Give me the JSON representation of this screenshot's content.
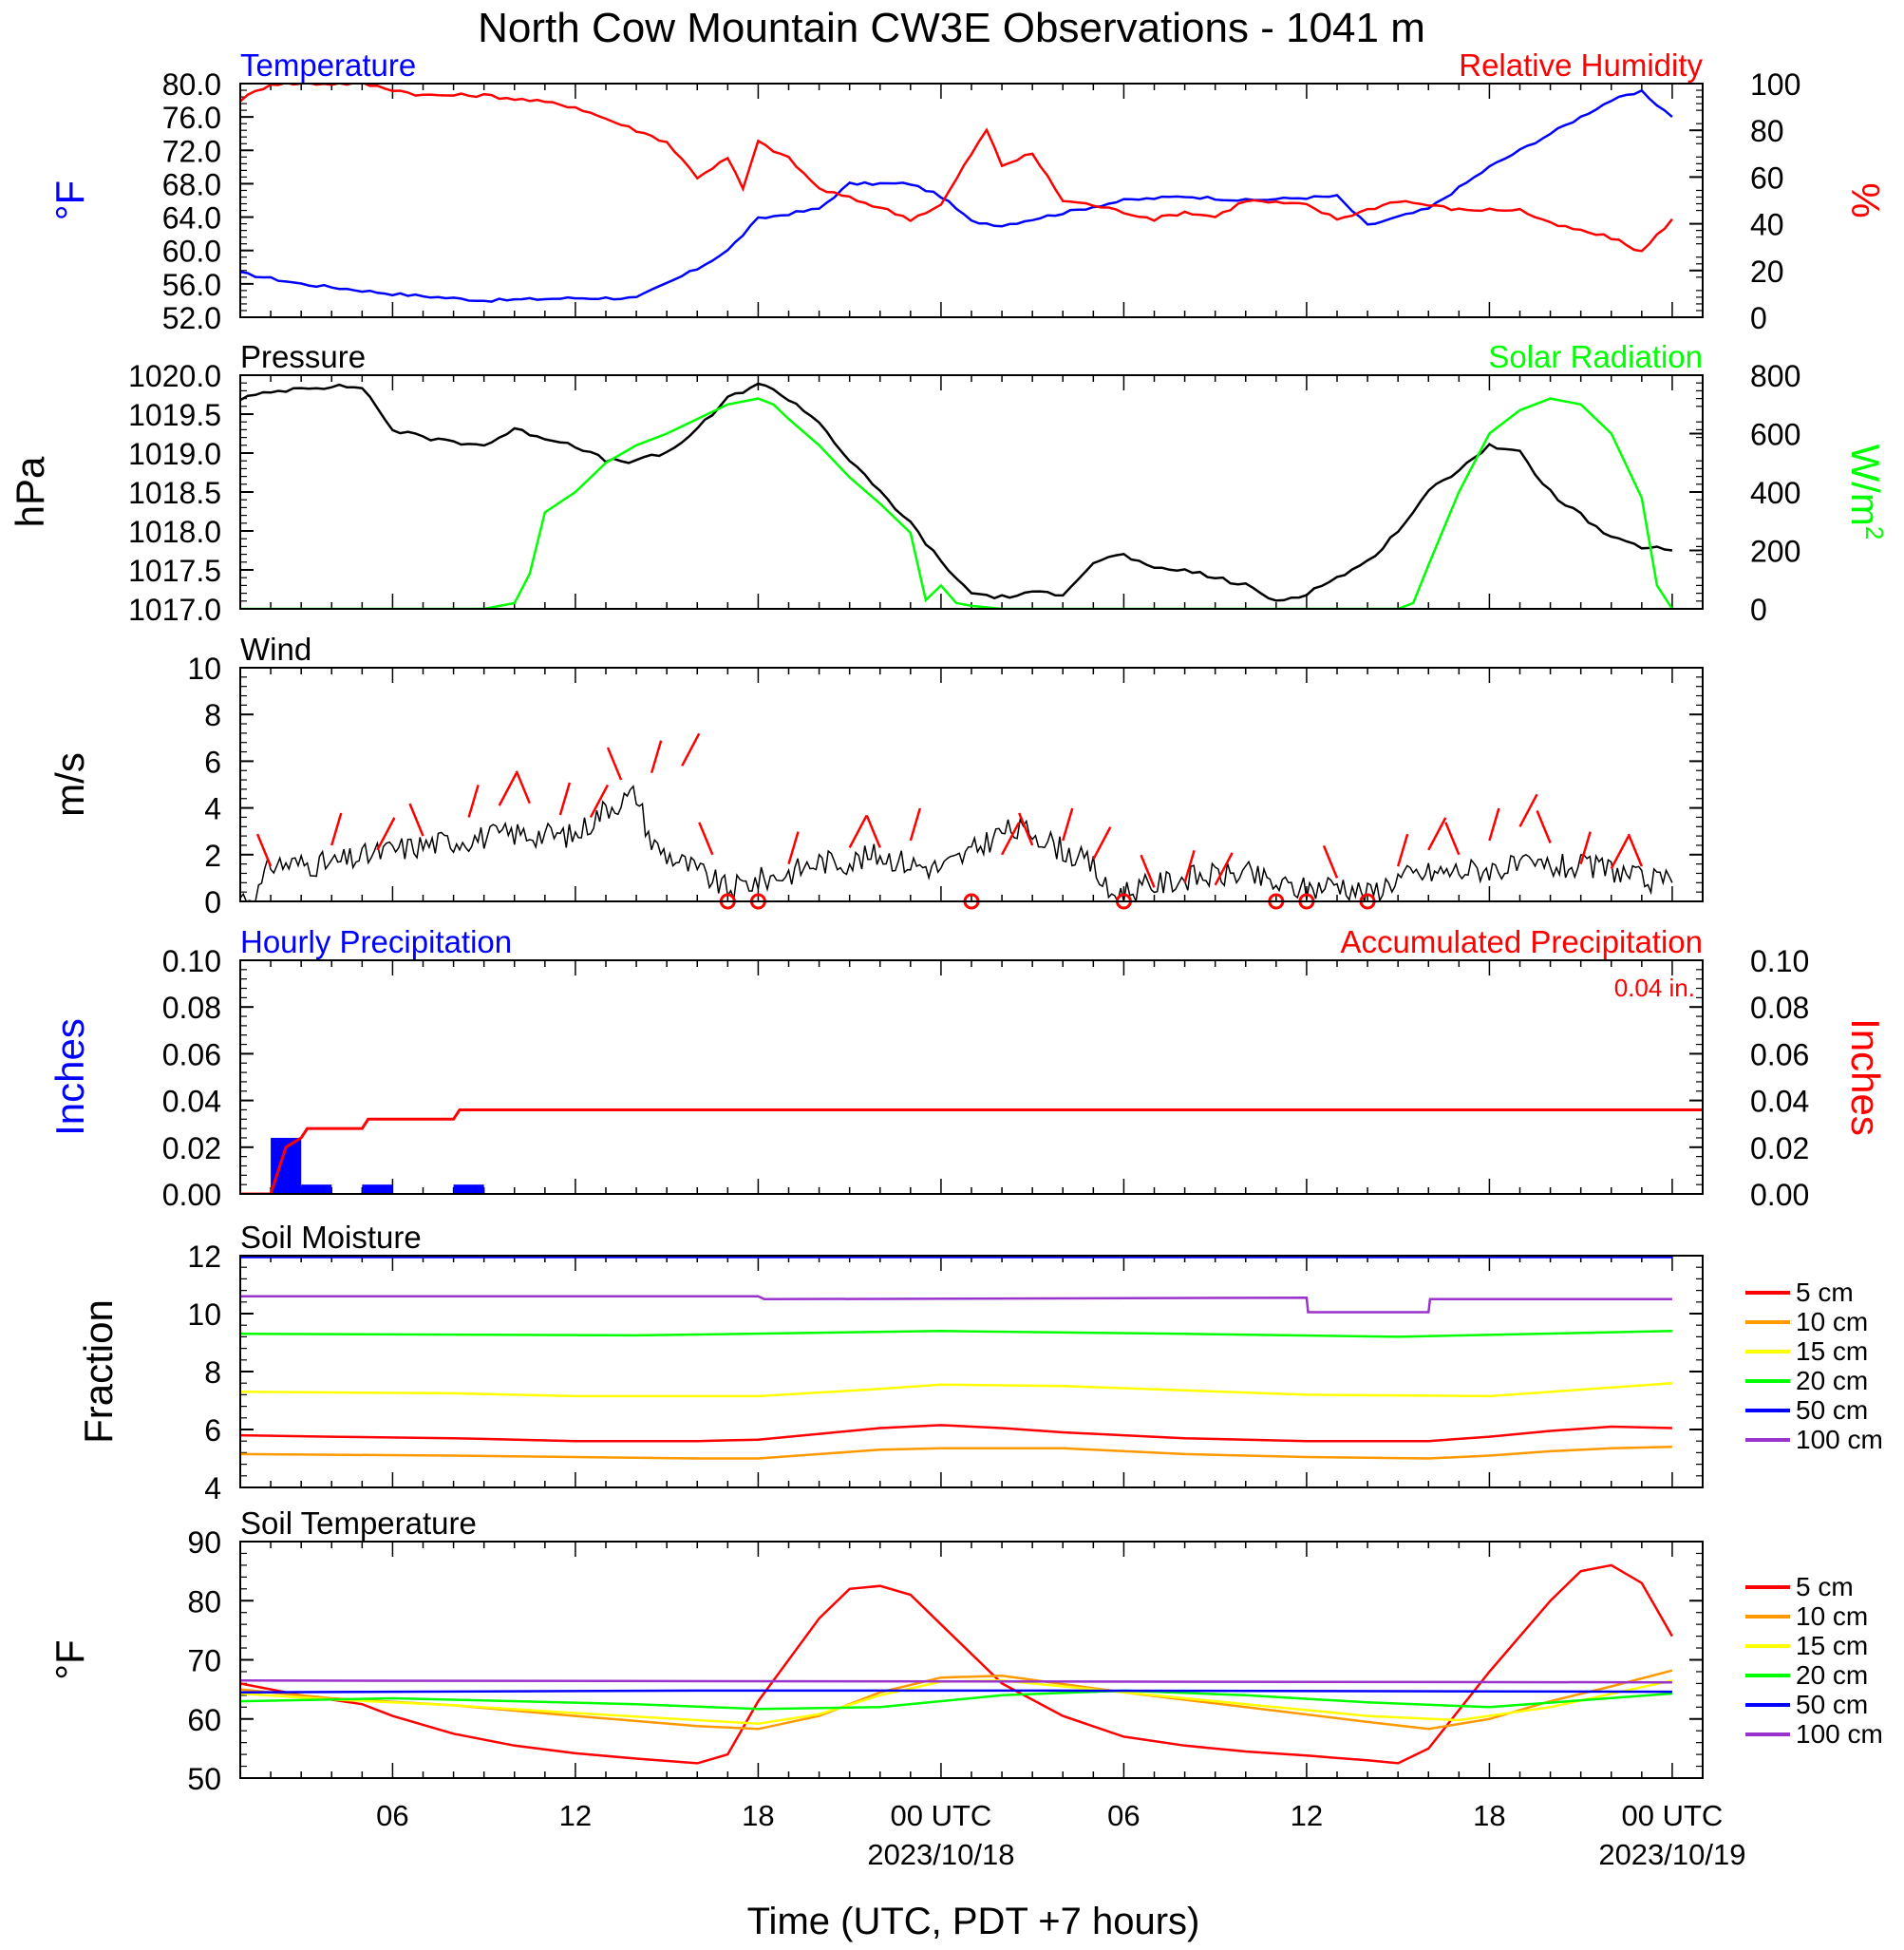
{
  "title": "North Cow Mountain CW3E Observations - 1041 m",
  "x_axis": {
    "title": "Time (UTC, PDT +7 hours)",
    "hour_range": [
      -23,
      25
    ],
    "ticks": [
      {
        "hour": -18,
        "label": "06",
        "date": ""
      },
      {
        "hour": -12,
        "label": "12",
        "date": ""
      },
      {
        "hour": -6,
        "label": "18",
        "date": ""
      },
      {
        "hour": 0,
        "label": "00 UTC",
        "date": "2023/10/18"
      },
      {
        "hour": 6,
        "label": "06",
        "date": ""
      },
      {
        "hour": 12,
        "label": "12",
        "date": ""
      },
      {
        "hour": 18,
        "label": "18",
        "date": ""
      },
      {
        "hour": 24,
        "label": "00 UTC",
        "date": "2023/10/19"
      }
    ]
  },
  "colors": {
    "temperature": "#0000ff",
    "humidity": "#ff0000",
    "pressure": "#000000",
    "solar": "#00ff00",
    "wind": "#000000",
    "barbs": "#ff0000",
    "hourly_precip": "#0000ff",
    "accum_precip": "#ff0000"
  },
  "chart_data": [
    {
      "id": "temp_rh",
      "type": "line",
      "left_title": "Temperature",
      "right_title": "Relative Humidity",
      "ylabel_left": "°F",
      "ylabel_right": "%",
      "ylim_left": [
        52,
        80
      ],
      "ylim_right": [
        0,
        100
      ],
      "yticks_left": [
        "52.0",
        "56.0",
        "60.0",
        "64.0",
        "68.0",
        "72.0",
        "76.0",
        "80.0"
      ],
      "yticks_right": [
        "0",
        "20",
        "40",
        "60",
        "80",
        "100"
      ],
      "series": [
        {
          "name": "Temperature",
          "axis": "left",
          "color": "#0000ff",
          "x": [
            -23,
            -21,
            -18,
            -15,
            -12,
            -10,
            -8,
            -7,
            -6,
            -4,
            -3,
            -1,
            0,
            1,
            2,
            4,
            6,
            8,
            10,
            13,
            14,
            16,
            18,
            20,
            22,
            23,
            24
          ],
          "y": [
            57.3,
            56.0,
            54.8,
            54.0,
            54.3,
            54.3,
            57.8,
            60.0,
            63.8,
            65.0,
            68.0,
            68.0,
            66.5,
            63.5,
            63.0,
            64.5,
            66.0,
            66.5,
            66.0,
            66.5,
            63.0,
            65.0,
            70.0,
            74.0,
            78.0,
            79.0,
            76.0
          ]
        },
        {
          "name": "Relative Humidity",
          "axis": "right",
          "color": "#ff0000",
          "x": [
            -23,
            -22,
            -20,
            -19,
            -17,
            -15,
            -13,
            -12,
            -11,
            -10,
            -9,
            -8,
            -7,
            -6.5,
            -6,
            -5,
            -4,
            -2,
            -1,
            0,
            1,
            1.5,
            2,
            3,
            4,
            5,
            6,
            7,
            8,
            9,
            10,
            12,
            13,
            15,
            17,
            19,
            20,
            22,
            23,
            24
          ],
          "y": [
            93,
            100,
            100,
            100,
            95,
            95,
            92,
            90,
            85,
            80,
            75,
            60,
            68,
            55,
            75,
            68,
            55,
            47,
            42,
            48,
            70,
            80,
            65,
            70,
            50,
            48,
            45,
            42,
            45,
            43,
            50,
            48,
            42,
            50,
            46,
            46,
            40,
            34,
            28,
            42
          ]
        }
      ]
    },
    {
      "id": "pressure_solar",
      "type": "line",
      "left_title": "Pressure",
      "right_title": "Solar Radiation",
      "ylabel_left": "hPa",
      "ylabel_right": "W/m",
      "ylabel_right_sup": "2",
      "ylim_left": [
        1017,
        1020
      ],
      "ylim_right": [
        0,
        800
      ],
      "yticks_left": [
        "1017.0",
        "1017.5",
        "1018.0",
        "1018.5",
        "1019.0",
        "1019.5",
        "1020.0"
      ],
      "yticks_right": [
        "0",
        "200",
        "400",
        "600",
        "800"
      ],
      "series": [
        {
          "name": "Pressure",
          "axis": "left",
          "color": "#000000",
          "x": [
            -23,
            -21,
            -19,
            -18,
            -17,
            -15,
            -14,
            -12,
            -11,
            -10,
            -9,
            -8,
            -7,
            -6,
            -5,
            -4,
            -3,
            -2,
            -1,
            0,
            1,
            2,
            3,
            4,
            5,
            6,
            7,
            8,
            9,
            10,
            11,
            12,
            13,
            14,
            15,
            16,
            17,
            18,
            19,
            20,
            21,
            22,
            23,
            24
          ],
          "y": [
            1019.7,
            1019.85,
            1019.85,
            1019.3,
            1019.2,
            1019.1,
            1019.3,
            1019.1,
            1018.9,
            1018.9,
            1019.0,
            1019.3,
            1019.7,
            1019.9,
            1019.7,
            1019.4,
            1018.9,
            1018.5,
            1018.1,
            1017.6,
            1017.2,
            1017.15,
            1017.2,
            1017.2,
            1017.6,
            1017.7,
            1017.5,
            1017.5,
            1017.4,
            1017.3,
            1017.1,
            1017.2,
            1017.4,
            1017.6,
            1018.0,
            1018.5,
            1018.8,
            1019.1,
            1019.0,
            1018.5,
            1018.2,
            1017.9,
            1017.8,
            1017.75
          ]
        },
        {
          "name": "Solar Radiation",
          "axis": "right",
          "color": "#00ff00",
          "x": [
            -23,
            -15,
            -14,
            -13.5,
            -13,
            -12,
            -11,
            -10,
            -9,
            -8,
            -7,
            -6,
            -5.5,
            -5,
            -4,
            -3,
            -2,
            -1,
            -0.5,
            0,
            0.5,
            1,
            2,
            12,
            15,
            15.5,
            16,
            17,
            18,
            19,
            20,
            21,
            22,
            23,
            23.5,
            24
          ],
          "y": [
            0,
            0,
            20,
            120,
            330,
            400,
            500,
            560,
            600,
            650,
            700,
            720,
            700,
            650,
            560,
            450,
            360,
            260,
            30,
            80,
            20,
            10,
            0,
            0,
            0,
            20,
            150,
            400,
            600,
            680,
            720,
            700,
            600,
            380,
            80,
            0
          ]
        }
      ]
    },
    {
      "id": "wind",
      "type": "line",
      "left_title": "Wind",
      "ylabel_left": "m/s",
      "ylim_left": [
        0,
        10
      ],
      "yticks_left": [
        "0",
        "2",
        "4",
        "6",
        "8",
        "10"
      ],
      "series": [
        {
          "name": "Wind",
          "axis": "left",
          "color": "#000000",
          "x": [
            -23,
            -22.5,
            -22,
            -20,
            -18,
            -16,
            -14,
            -12,
            -11,
            -10,
            -9.5,
            -9,
            -8,
            -7,
            -6,
            -5,
            -4,
            -3,
            -2,
            -1,
            0,
            1,
            2,
            3,
            4,
            5,
            5.5,
            6,
            8,
            10,
            11,
            12,
            13,
            14,
            15,
            16,
            18,
            20,
            22,
            23,
            24
          ],
          "y": [
            0.2,
            0.1,
            1.6,
            1.6,
            2.2,
            2.6,
            2.9,
            2.8,
            4.0,
            4.6,
            2.5,
            2.0,
            1.3,
            0.5,
            0.9,
            1.2,
            1.7,
            1.7,
            2.0,
            1.6,
            1.4,
            2.1,
            3.0,
            3.0,
            2.2,
            1.5,
            0.3,
            0.4,
            1.0,
            1.2,
            0.7,
            0.5,
            0.8,
            0.3,
            1.0,
            1.2,
            1.4,
            1.5,
            1.4,
            0.9,
            0.8
          ]
        }
      ],
      "barb_hours": [
        -22,
        -20,
        -18.5,
        -17,
        -15.5,
        -14.5,
        -13.5,
        -12.5,
        -11.5,
        -10.5,
        -9.5,
        -8.5,
        -7.5,
        -5,
        -3,
        -2,
        -1,
        2,
        3,
        4,
        5,
        7,
        8,
        9,
        13,
        15,
        16,
        17,
        18,
        19,
        20,
        21,
        22,
        23
      ],
      "barb_speeds": [
        1.5,
        2.4,
        2.2,
        2.8,
        3.6,
        4.1,
        4.2,
        3.7,
        3.6,
        5.2,
        5.5,
        5.8,
        2.0,
        1.6,
        2.3,
        2.3,
        2.6,
        2.0,
        2.4,
        2.6,
        1.8,
        0.6,
        0.8,
        0.7,
        1.0,
        1.5,
        2.2,
        2.0,
        2.6,
        3.2,
        2.5,
        1.6,
        1.4,
        1.5
      ],
      "calm_hours": [
        -7,
        -6,
        1,
        6,
        11,
        12,
        14
      ]
    },
    {
      "id": "precip",
      "type": "bar",
      "left_title": "Hourly Precipitation",
      "right_title": "Accumulated Precipitation",
      "total_label": "0.04 in.",
      "ylabel_left": "Inches",
      "ylabel_right": "Inches",
      "ylim_left": [
        0,
        0.1
      ],
      "ylim_right": [
        0,
        0.1
      ],
      "yticks_left": [
        "0.00",
        "0.02",
        "0.04",
        "0.06",
        "0.08",
        "0.10"
      ],
      "yticks_right": [
        "0.00",
        "0.02",
        "0.04",
        "0.06",
        "0.08",
        "0.10"
      ],
      "bars": {
        "start_hours": [
          -22,
          -21,
          -19,
          -16
        ],
        "values": [
          0.024,
          0.004,
          0.004,
          0.004
        ]
      },
      "accumulated": {
        "x": [
          -23,
          -22,
          -21.5,
          -21,
          -20.8,
          -19,
          -18.8,
          -16,
          -15.8,
          25
        ],
        "y": [
          0,
          0,
          0.02,
          0.024,
          0.028,
          0.028,
          0.032,
          0.032,
          0.036,
          0.036
        ]
      }
    },
    {
      "id": "soil_moisture",
      "type": "line",
      "left_title": "Soil Moisture",
      "ylabel_left": "Fraction",
      "ylim_left": [
        4,
        12
      ],
      "yticks_left": [
        "4",
        "6",
        "8",
        "10",
        "12"
      ],
      "series": [
        {
          "name": "5 cm",
          "axis": "left",
          "color": "#ff0000",
          "x": [
            -23,
            -20,
            -16,
            -12,
            -8,
            -6,
            -4,
            -2,
            0,
            2,
            4,
            6,
            8,
            12,
            16,
            18,
            20,
            22,
            24
          ],
          "y": [
            5.8,
            5.75,
            5.7,
            5.6,
            5.6,
            5.65,
            5.85,
            6.05,
            6.15,
            6.05,
            5.9,
            5.8,
            5.7,
            5.6,
            5.6,
            5.75,
            5.95,
            6.1,
            6.05
          ]
        },
        {
          "name": "10 cm",
          "axis": "left",
          "color": "#ff9900",
          "x": [
            -23,
            -16,
            -12,
            -8,
            -6,
            -4,
            -2,
            0,
            4,
            8,
            12,
            16,
            18,
            20,
            22,
            24
          ],
          "y": [
            5.15,
            5.1,
            5.05,
            5.0,
            5.0,
            5.15,
            5.3,
            5.35,
            5.35,
            5.15,
            5.05,
            5.0,
            5.1,
            5.25,
            5.35,
            5.4
          ]
        },
        {
          "name": "15 cm",
          "axis": "left",
          "color": "#ffff00",
          "x": [
            -23,
            -16,
            -12,
            -6,
            -2,
            0,
            4,
            8,
            12,
            18,
            24
          ],
          "y": [
            7.3,
            7.25,
            7.15,
            7.15,
            7.4,
            7.55,
            7.5,
            7.35,
            7.2,
            7.15,
            7.6
          ]
        },
        {
          "name": "20 cm",
          "axis": "left",
          "color": "#00ff00",
          "x": [
            -23,
            -10,
            0,
            8,
            15,
            24
          ],
          "y": [
            9.3,
            9.25,
            9.4,
            9.3,
            9.2,
            9.4
          ]
        },
        {
          "name": "50 cm",
          "axis": "left",
          "color": "#0000ff",
          "x": [
            -23,
            24
          ],
          "y": [
            11.95,
            11.95
          ]
        },
        {
          "name": "100 cm",
          "axis": "left",
          "color": "#9933cc",
          "x": [
            -23,
            -6,
            -5.8,
            12,
            12.05,
            16,
            16.05,
            24
          ],
          "y": [
            10.6,
            10.6,
            10.5,
            10.55,
            10.05,
            10.05,
            10.5,
            10.5
          ]
        }
      ]
    },
    {
      "id": "soil_temp",
      "type": "line",
      "left_title": "Soil Temperature",
      "ylabel_left": "°F",
      "ylim_left": [
        50,
        90
      ],
      "yticks_left": [
        "50",
        "60",
        "70",
        "80",
        "90"
      ],
      "series": [
        {
          "name": "5 cm",
          "axis": "left",
          "color": "#ff0000",
          "x": [
            -23,
            -21,
            -19,
            -18,
            -16,
            -14,
            -12,
            -10,
            -8,
            -7,
            -6,
            -4,
            -3,
            -2,
            -1,
            0,
            2,
            4,
            6,
            8,
            10,
            12,
            14,
            15,
            16,
            18,
            20,
            21,
            22,
            23,
            24
          ],
          "y": [
            66,
            64,
            62.5,
            60.5,
            57.5,
            55.5,
            54.2,
            53.3,
            52.5,
            54,
            63,
            77,
            82,
            82.5,
            81,
            76,
            66,
            60.5,
            57,
            55.5,
            54.5,
            53.8,
            53,
            52.5,
            55,
            68,
            80,
            85,
            86,
            83,
            74
          ]
        },
        {
          "name": "10 cm",
          "axis": "left",
          "color": "#ff9900",
          "x": [
            -23,
            -20,
            -16,
            -12,
            -8,
            -6,
            -4,
            -2,
            0,
            2,
            6,
            10,
            14,
            16,
            18,
            20,
            22,
            24
          ],
          "y": [
            65,
            63.5,
            62.3,
            60.5,
            58.8,
            58.3,
            60.5,
            64.5,
            67,
            67.3,
            64.5,
            62,
            59.5,
            58.3,
            60,
            63,
            65.5,
            68.2
          ]
        },
        {
          "name": "15 cm",
          "axis": "left",
          "color": "#ffff00",
          "x": [
            -23,
            -20,
            -16,
            -12,
            -8,
            -6,
            -4,
            -2,
            0,
            2,
            6,
            10,
            14,
            17,
            20,
            24
          ],
          "y": [
            64.3,
            63.3,
            62.3,
            61,
            59.8,
            59.2,
            60.8,
            64,
            66.3,
            66.5,
            64.5,
            62.5,
            60.5,
            59.8,
            62,
            66.5
          ]
        },
        {
          "name": "20 cm",
          "axis": "left",
          "color": "#00ff00",
          "x": [
            -23,
            -18,
            -10,
            -6,
            -2,
            2,
            6,
            10,
            14,
            18,
            24
          ],
          "y": [
            63.0,
            63.5,
            62.5,
            61.7,
            62.0,
            64.0,
            64.8,
            64.0,
            62.8,
            62.0,
            64.3
          ]
        },
        {
          "name": "50 cm",
          "axis": "left",
          "color": "#0000ff",
          "x": [
            -23,
            -8,
            4,
            24
          ],
          "y": [
            64.5,
            64.8,
            64.8,
            64.6
          ]
        },
        {
          "name": "100 cm",
          "axis": "left",
          "color": "#9933cc",
          "x": [
            -23,
            24
          ],
          "y": [
            66.5,
            66.2
          ]
        }
      ]
    }
  ],
  "legend_entries": [
    "5 cm",
    "10 cm",
    "15 cm",
    "20 cm",
    "50 cm",
    "100 cm"
  ],
  "legend_colors": [
    "#ff0000",
    "#ff9900",
    "#ffff00",
    "#00ff00",
    "#0000ff",
    "#9933cc"
  ]
}
